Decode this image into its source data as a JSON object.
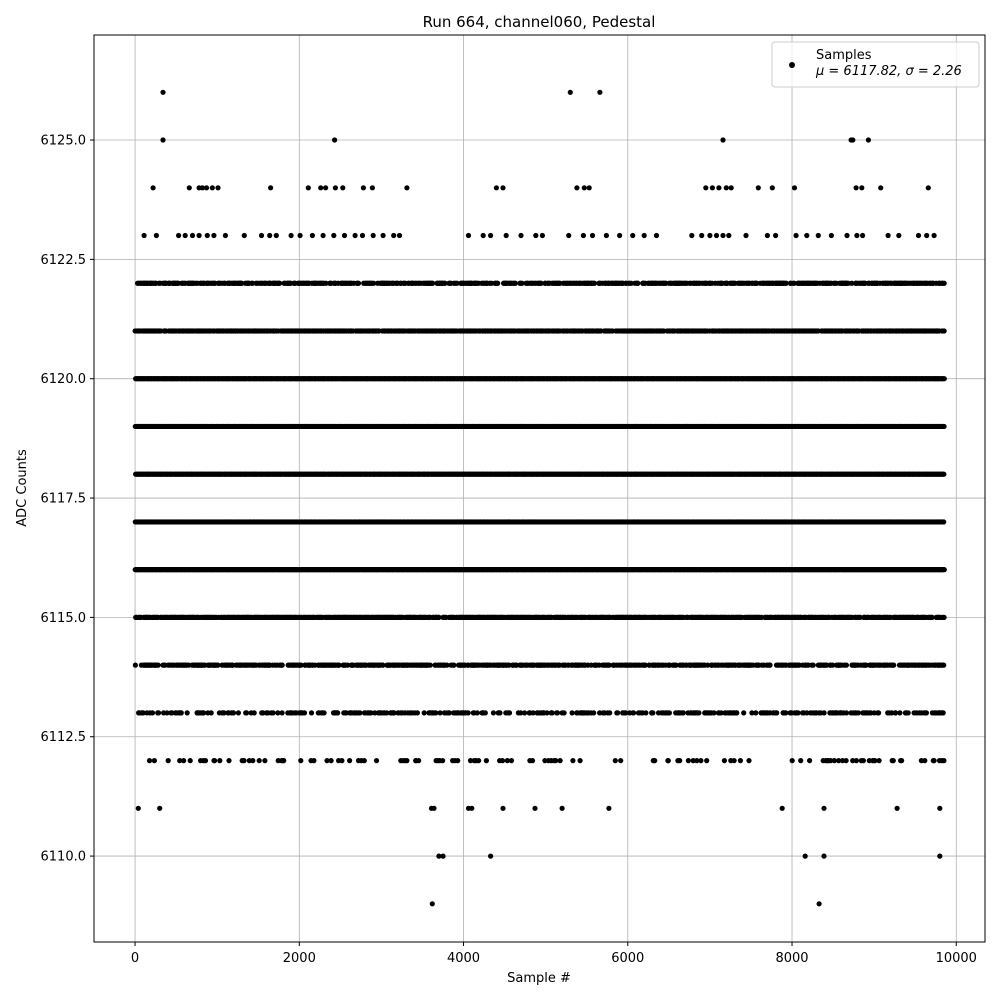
{
  "chart_data": {
    "type": "scatter",
    "title": "Run 664, channel060, Pedestal",
    "xlabel": "Sample #",
    "ylabel": "ADC Counts",
    "xlim": [
      -500,
      10350
    ],
    "ylim": [
      6108.2,
      6127.2
    ],
    "xticks": [
      0,
      2000,
      4000,
      6000,
      8000,
      10000
    ],
    "xtick_labels": [
      "0",
      "2000",
      "4000",
      "6000",
      "8000",
      "10000"
    ],
    "yticks": [
      6110.0,
      6112.5,
      6115.0,
      6117.5,
      6120.0,
      6122.5,
      6125.0
    ],
    "ytick_labels": [
      "6110.0",
      "6112.5",
      "6115.0",
      "6117.5",
      "6120.0",
      "6122.5",
      "6125.0"
    ],
    "grid": true,
    "legend": {
      "location": "upper right",
      "label": "Samples",
      "stats": "μ = 6117.82, σ = 2.26"
    },
    "marker_color": "#000000",
    "n_samples": 9850,
    "mean": 6117.82,
    "sigma": 2.26,
    "series": [
      {
        "name": "Samples",
        "points": [
          [
            340,
            6126
          ],
          [
            5300,
            6126
          ],
          [
            5660,
            6126
          ],
          [
            340,
            6125
          ],
          [
            2430,
            6125
          ],
          [
            7160,
            6125
          ],
          [
            8720,
            6125
          ],
          [
            8740,
            6125
          ],
          [
            8930,
            6125
          ],
          [
            220,
            6124
          ],
          [
            660,
            6124
          ],
          [
            780,
            6124
          ],
          [
            820,
            6124
          ],
          [
            870,
            6124
          ],
          [
            940,
            6124
          ],
          [
            1010,
            6124
          ],
          [
            1650,
            6124
          ],
          [
            2110,
            6124
          ],
          [
            2260,
            6124
          ],
          [
            2320,
            6124
          ],
          [
            2440,
            6124
          ],
          [
            2530,
            6124
          ],
          [
            2780,
            6124
          ],
          [
            2890,
            6124
          ],
          [
            3310,
            6124
          ],
          [
            4400,
            6124
          ],
          [
            4480,
            6124
          ],
          [
            5380,
            6124
          ],
          [
            5470,
            6124
          ],
          [
            5530,
            6124
          ],
          [
            6950,
            6124
          ],
          [
            7030,
            6124
          ],
          [
            7110,
            6124
          ],
          [
            7200,
            6124
          ],
          [
            7260,
            6124
          ],
          [
            7590,
            6124
          ],
          [
            7760,
            6124
          ],
          [
            8030,
            6124
          ],
          [
            8780,
            6124
          ],
          [
            8850,
            6124
          ],
          [
            9080,
            6124
          ],
          [
            9660,
            6124
          ],
          [
            110,
            6123
          ],
          [
            260,
            6123
          ],
          [
            530,
            6123
          ],
          [
            610,
            6123
          ],
          [
            700,
            6123
          ],
          [
            780,
            6123
          ],
          [
            880,
            6123
          ],
          [
            960,
            6123
          ],
          [
            1100,
            6123
          ],
          [
            1330,
            6123
          ],
          [
            1540,
            6123
          ],
          [
            1640,
            6123
          ],
          [
            1720,
            6123
          ],
          [
            1900,
            6123
          ],
          [
            2010,
            6123
          ],
          [
            2160,
            6123
          ],
          [
            2290,
            6123
          ],
          [
            2420,
            6123
          ],
          [
            2550,
            6123
          ],
          [
            2680,
            6123
          ],
          [
            2770,
            6123
          ],
          [
            2900,
            6123
          ],
          [
            3020,
            6123
          ],
          [
            3150,
            6123
          ],
          [
            3220,
            6123
          ],
          [
            4060,
            6123
          ],
          [
            4240,
            6123
          ],
          [
            4330,
            6123
          ],
          [
            4520,
            6123
          ],
          [
            4700,
            6123
          ],
          [
            4880,
            6123
          ],
          [
            4960,
            6123
          ],
          [
            5280,
            6123
          ],
          [
            5460,
            6123
          ],
          [
            5570,
            6123
          ],
          [
            5740,
            6123
          ],
          [
            5900,
            6123
          ],
          [
            6060,
            6123
          ],
          [
            6200,
            6123
          ],
          [
            6350,
            6123
          ],
          [
            6780,
            6123
          ],
          [
            6900,
            6123
          ],
          [
            7000,
            6123
          ],
          [
            7080,
            6123
          ],
          [
            7160,
            6123
          ],
          [
            7230,
            6123
          ],
          [
            7440,
            6123
          ],
          [
            7700,
            6123
          ],
          [
            7800,
            6123
          ],
          [
            8050,
            6123
          ],
          [
            8180,
            6123
          ],
          [
            8320,
            6123
          ],
          [
            8480,
            6123
          ],
          [
            8670,
            6123
          ],
          [
            8790,
            6123
          ],
          [
            8860,
            6123
          ],
          [
            9170,
            6123
          ],
          [
            9300,
            6123
          ],
          [
            9540,
            6123
          ],
          [
            9640,
            6123
          ],
          [
            9730,
            6123
          ],
          [
            3610,
            6111
          ],
          [
            3640,
            6111
          ],
          [
            4060,
            6111
          ],
          [
            4100,
            6111
          ],
          [
            4480,
            6111
          ],
          [
            4870,
            6111
          ],
          [
            5200,
            6111
          ],
          [
            5770,
            6111
          ],
          [
            7880,
            6111
          ],
          [
            8390,
            6111
          ],
          [
            9280,
            6111
          ],
          [
            9800,
            6111
          ],
          [
            40,
            6111
          ],
          [
            300,
            6111
          ],
          [
            3700,
            6110
          ],
          [
            3750,
            6110
          ],
          [
            4330,
            6110
          ],
          [
            8160,
            6110
          ],
          [
            8390,
            6110
          ],
          [
            9800,
            6110
          ],
          [
            3620,
            6109
          ],
          [
            8330,
            6109
          ]
        ],
        "bands": [
          {
            "y": 6122,
            "density": 0.55
          },
          {
            "y": 6121,
            "density": 0.85
          },
          {
            "y": 6120,
            "density": 1.0
          },
          {
            "y": 6119,
            "density": 1.0
          },
          {
            "y": 6118,
            "density": 1.0
          },
          {
            "y": 6117,
            "density": 1.0
          },
          {
            "y": 6116,
            "density": 1.0
          },
          {
            "y": 6115,
            "density": 0.8
          },
          {
            "y": 6114,
            "density": 0.55
          },
          {
            "y": 6113,
            "density": 0.3
          },
          {
            "y": 6112,
            "density": 0.1
          }
        ]
      }
    ]
  }
}
